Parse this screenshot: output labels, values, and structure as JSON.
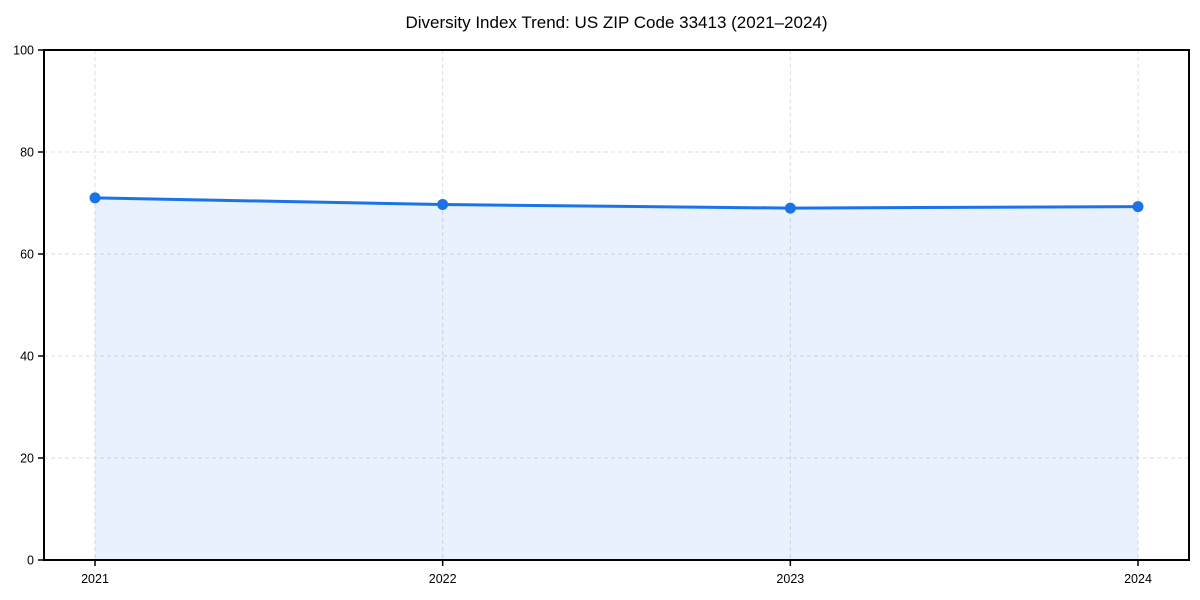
{
  "figure": {
    "background": "#ffffff"
  },
  "chart_data": {
    "type": "area",
    "title": "Diversity Index Trend: US ZIP Code 33413 (2021–2024)",
    "x": [
      "2021",
      "2022",
      "2023",
      "2024"
    ],
    "series": [
      {
        "name": "Diversity Index",
        "values": [
          71.0,
          69.7,
          69.0,
          69.3
        ]
      }
    ],
    "xlabel": "",
    "ylabel": "",
    "ylim": [
      0,
      100
    ],
    "yticks": [
      0,
      20,
      40,
      60,
      80,
      100
    ],
    "grid": "dashed",
    "legend": "none",
    "markers": true,
    "colors": {
      "line": "#1a73e8",
      "marker": "#1a73e8",
      "fill": "#1a73e8",
      "fill_opacity": 0.1,
      "gridline": "#dcdcdc",
      "axis": "#000000",
      "tick_label": "#000000",
      "title": "#000000"
    }
  }
}
